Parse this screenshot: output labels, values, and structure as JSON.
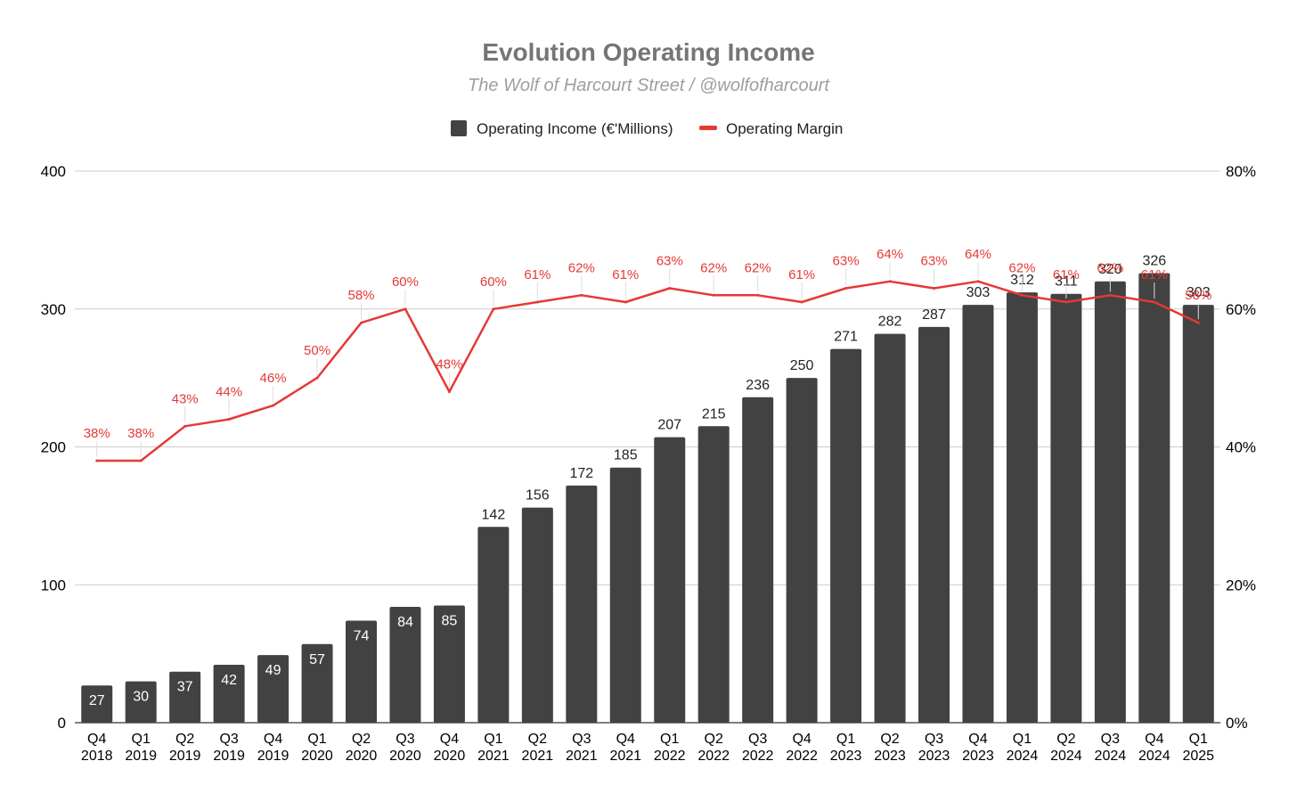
{
  "chart_data": {
    "type": "bar",
    "title": "Evolution Operating Income",
    "subtitle": "The Wolf of Harcourt Street / @wolfofharcourt",
    "categories": [
      [
        "Q4",
        "2018"
      ],
      [
        "Q1",
        "2019"
      ],
      [
        "Q2",
        "2019"
      ],
      [
        "Q3",
        "2019"
      ],
      [
        "Q4",
        "2019"
      ],
      [
        "Q1",
        "2020"
      ],
      [
        "Q2",
        "2020"
      ],
      [
        "Q3",
        "2020"
      ],
      [
        "Q4",
        "2020"
      ],
      [
        "Q1",
        "2021"
      ],
      [
        "Q2",
        "2021"
      ],
      [
        "Q3",
        "2021"
      ],
      [
        "Q4",
        "2021"
      ],
      [
        "Q1",
        "2022"
      ],
      [
        "Q2",
        "2022"
      ],
      [
        "Q3",
        "2022"
      ],
      [
        "Q4",
        "2022"
      ],
      [
        "Q1",
        "2023"
      ],
      [
        "Q2",
        "2023"
      ],
      [
        "Q3",
        "2023"
      ],
      [
        "Q4",
        "2023"
      ],
      [
        "Q1",
        "2024"
      ],
      [
        "Q2",
        "2024"
      ],
      [
        "Q3",
        "2024"
      ],
      [
        "Q4",
        "2024"
      ],
      [
        "Q1",
        "2025"
      ]
    ],
    "series": [
      {
        "name": "Operating Income (€'Millions)",
        "type": "bar",
        "axis": "left",
        "color": "#424242",
        "values": [
          27,
          30,
          37,
          42,
          49,
          57,
          74,
          84,
          85,
          142,
          156,
          172,
          185,
          207,
          215,
          236,
          250,
          271,
          282,
          287,
          303,
          312,
          311,
          320,
          326,
          303
        ],
        "labels": [
          "27",
          "30",
          "37",
          "42",
          "49",
          "57",
          "74",
          "84",
          "85",
          "142",
          "156",
          "172",
          "185",
          "207",
          "215",
          "236",
          "250",
          "271",
          "282",
          "287",
          "303",
          "312",
          "311",
          "320",
          "326",
          "303"
        ]
      },
      {
        "name": "Operating Margin",
        "type": "line",
        "axis": "right",
        "color": "#e53935",
        "values": [
          38,
          38,
          43,
          44,
          46,
          50,
          58,
          60,
          48,
          60,
          61,
          62,
          61,
          63,
          62,
          62,
          61,
          63,
          64,
          63,
          64,
          62,
          61,
          62,
          61,
          58
        ],
        "labels": [
          "38%",
          "38%",
          "43%",
          "44%",
          "46%",
          "50%",
          "58%",
          "60%",
          "48%",
          "60%",
          "61%",
          "62%",
          "61%",
          "63%",
          "62%",
          "62%",
          "61%",
          "63%",
          "64%",
          "63%",
          "64%",
          "62%",
          "61%",
          "62%",
          "61%",
          "58%"
        ]
      }
    ],
    "y_left": {
      "min": 0,
      "max": 400,
      "ticks": [
        "0",
        "100",
        "200",
        "300",
        "400"
      ]
    },
    "y_right": {
      "min": 0,
      "max": 80,
      "ticks": [
        "0%",
        "20%",
        "40%",
        "60%",
        "80%"
      ]
    },
    "grid": true,
    "legend_position": "top-center"
  }
}
